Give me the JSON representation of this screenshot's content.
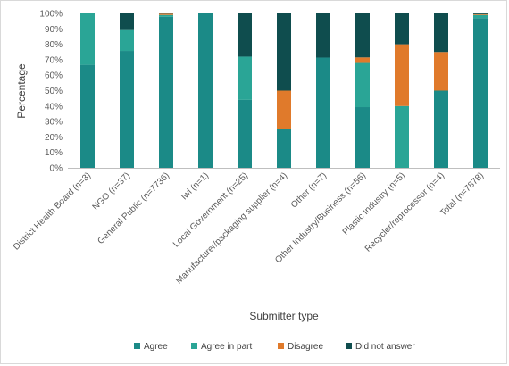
{
  "chart_data": {
    "type": "bar",
    "stacked": true,
    "percent_stacked": true,
    "categories": [
      "District Health Board (n=3)",
      "NGO (n=37)",
      "General Public (n=7736)",
      "Iwi (n=1)",
      "Local Government (n=25)",
      "Manufacturer/packaging supplier (n=4)",
      "Other (n=7)",
      "Other Industry/Business (n=56)",
      "Plastic Industry (n=5)",
      "Recycler/reprocessor (n=4)",
      "Total (n=7878)"
    ],
    "series": [
      {
        "name": "Agree",
        "color": "#1b8a87",
        "values": [
          66.7,
          75.7,
          97.8,
          100,
          44,
          25,
          71.4,
          39.3,
          0,
          50,
          97
        ]
      },
      {
        "name": "Agree in part",
        "color": "#2aa596",
        "values": [
          33.3,
          13.5,
          1.2,
          0,
          28,
          0,
          0,
          28.6,
          40,
          0,
          2
        ]
      },
      {
        "name": "Disagree",
        "color": "#e07a2b",
        "values": [
          0,
          0,
          0.8,
          0,
          0,
          25,
          0,
          3.6,
          40,
          25,
          0.5
        ]
      },
      {
        "name": "Did not answer",
        "color": "#0f4d4e",
        "values": [
          0,
          10.8,
          0.2,
          0,
          28,
          50,
          28.6,
          28.5,
          20,
          25,
          0.5
        ]
      }
    ],
    "ylabel": "Percentage",
    "xlabel": "Submitter type",
    "ylim": [
      0,
      100
    ],
    "yticks": [
      "0%",
      "10%",
      "20%",
      "30%",
      "40%",
      "50%",
      "60%",
      "70%",
      "80%",
      "90%",
      "100%"
    ],
    "grid": false,
    "legend_position": "bottom"
  }
}
